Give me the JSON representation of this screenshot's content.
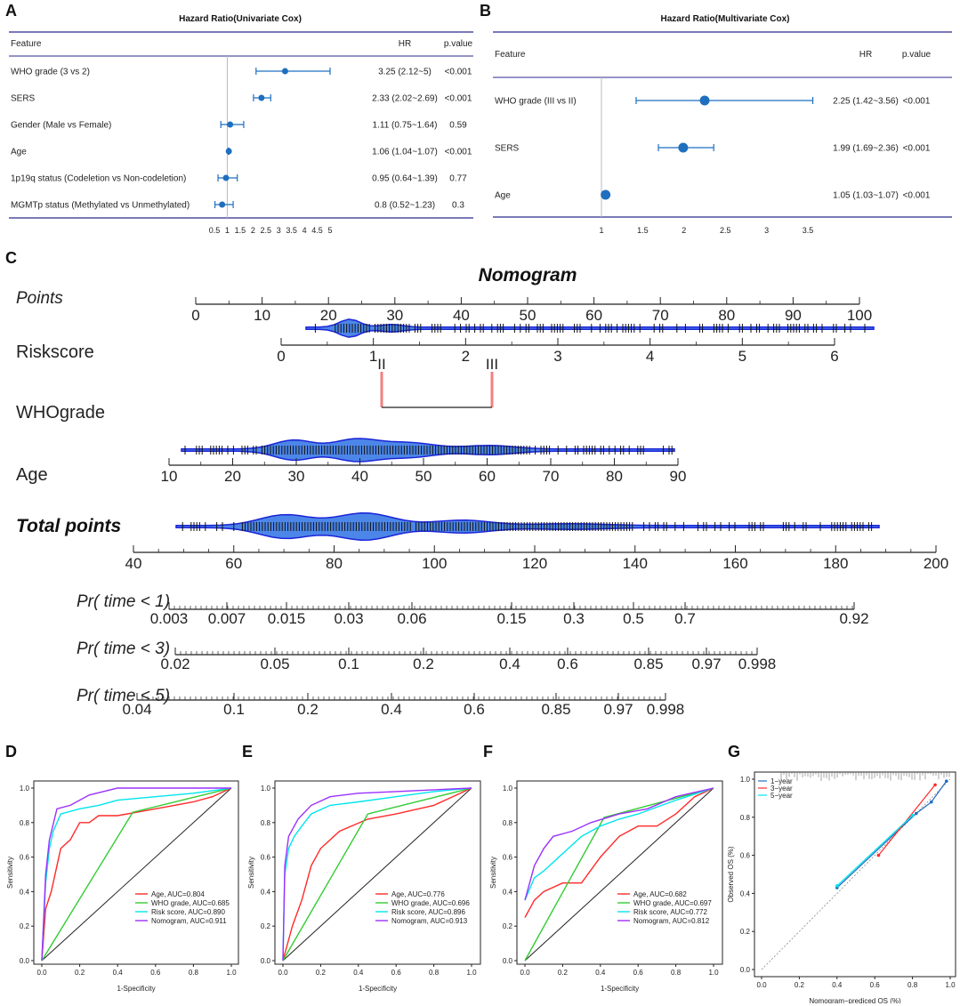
{
  "panel_labels": [
    "A",
    "B",
    "C",
    "D",
    "E",
    "F",
    "G"
  ],
  "colors": {
    "marker": "#1f6fbf",
    "line": "#1f6fbf",
    "rule": "#2b2b8c",
    "violin": "#4c86e8",
    "violin_edge": "#1b24d8",
    "bracket": "#f08080",
    "age": "#ff2a2a",
    "who": "#33cc33",
    "risk": "#00e5ee",
    "nomo": "#9b30ff"
  },
  "chart_data": [
    {
      "id": "A",
      "type": "forest",
      "title": "Hazard Ratio(Univariate Cox)",
      "headers": {
        "feature": "Feature",
        "hr": "HR",
        "p": "p.value"
      },
      "rows": [
        {
          "feature": "WHO grade  (3 vs 2)",
          "hr": 3.25,
          "lo": 2.12,
          "hi": 5,
          "hr_text": "3.25 (2.12~5)",
          "p": "<0.001"
        },
        {
          "feature": "SERS",
          "hr": 2.33,
          "lo": 2.02,
          "hi": 2.69,
          "hr_text": "2.33 (2.02~2.69)",
          "p": "<0.001"
        },
        {
          "feature": "Gender (Male vs Female)",
          "hr": 1.11,
          "lo": 0.75,
          "hi": 1.64,
          "hr_text": "1.11 (0.75~1.64)",
          "p": "0.59"
        },
        {
          "feature": "Age",
          "hr": 1.06,
          "lo": 1.04,
          "hi": 1.07,
          "hr_text": "1.06 (1.04~1.07)",
          "p": "<0.001"
        },
        {
          "feature": "1p19q status (Codeletion vs Non-codeletion)",
          "hr": 0.95,
          "lo": 0.64,
          "hi": 1.39,
          "hr_text": "0.95 (0.64~1.39)",
          "p": "0.77"
        },
        {
          "feature": "MGMTp status (Methylated vs Unmethylated)",
          "hr": 0.8,
          "lo": 0.52,
          "hi": 1.23,
          "hr_text": "0.8 (0.52~1.23)",
          "p": "0.3"
        }
      ],
      "ref": 1,
      "xlim": [
        0.5,
        5
      ],
      "ticks": [
        "0.5",
        "1",
        "1.5",
        "2",
        "2.5",
        "3",
        "3.5",
        "4",
        "4.5",
        "5"
      ]
    },
    {
      "id": "B",
      "type": "forest",
      "title": "Hazard Ratio(Multivariate Cox)",
      "headers": {
        "feature": "Feature",
        "hr": "HR",
        "p": "p.value"
      },
      "rows": [
        {
          "feature": "WHO grade (III vs II)",
          "hr": 2.25,
          "lo": 1.42,
          "hi": 3.56,
          "hr_text": "2.25 (1.42~3.56)",
          "p": "<0.001"
        },
        {
          "feature": "SERS",
          "hr": 1.99,
          "lo": 1.69,
          "hi": 2.36,
          "hr_text": "1.99 (1.69~2.36)",
          "p": "<0.001"
        },
        {
          "feature": "Age",
          "hr": 1.05,
          "lo": 1.03,
          "hi": 1.07,
          "hr_text": "1.05 (1.03~1.07)",
          "p": "<0.001"
        }
      ],
      "ref": 1,
      "xlim": [
        1,
        3.5
      ],
      "ticks": [
        "1",
        "1.5",
        "2",
        "2.5",
        "3",
        "3.5"
      ]
    },
    {
      "id": "C",
      "type": "nomogram",
      "title": "Nomogram",
      "rows": [
        {
          "label": "Points",
          "ticks": [
            "0",
            "10",
            "20",
            "30",
            "40",
            "50",
            "60",
            "70",
            "80",
            "90",
            "100"
          ]
        },
        {
          "label": "Riskscore",
          "ticks": [
            "0",
            "1",
            "2",
            "3",
            "4",
            "5",
            "6"
          ]
        },
        {
          "label": "WHOgrade",
          "ticks": [
            "II",
            "III"
          ]
        },
        {
          "label": "Age",
          "ticks": [
            "10",
            "20",
            "30",
            "40",
            "50",
            "60",
            "70",
            "80",
            "90"
          ]
        },
        {
          "label": "Total points",
          "ticks": [
            "40",
            "60",
            "80",
            "100",
            "120",
            "140",
            "160",
            "180",
            "200"
          ]
        },
        {
          "label": "Pr( time < 1)",
          "ticks": [
            "0.003",
            "0.007",
            "0.015",
            "0.03",
            "0.06",
            "0.15",
            "0.3",
            "0.5",
            "0.7",
            "0.92"
          ]
        },
        {
          "label": "Pr( time < 3)",
          "ticks": [
            "0.02",
            "0.05",
            "0.1",
            "0.2",
            "0.4",
            "0.6",
            "0.85",
            "0.97",
            "0.998"
          ]
        },
        {
          "label": "Pr( time < 5)",
          "ticks": [
            "0.04",
            "0.1",
            "0.2",
            "0.4",
            "0.6",
            "0.85",
            "0.97",
            "0.998"
          ]
        }
      ]
    },
    {
      "id": "D",
      "type": "line",
      "xlabel": "1-Specificity",
      "ylabel": "Sensitivity",
      "ticks": [
        "0.0",
        "0.2",
        "0.4",
        "0.6",
        "0.8",
        "1.0"
      ],
      "series": [
        {
          "name": "Age",
          "auc": "0.804",
          "legend": "Age, AUC=0.804",
          "color": "#ff2a2a",
          "pts": [
            [
              0,
              0
            ],
            [
              0.02,
              0.3
            ],
            [
              0.05,
              0.4
            ],
            [
              0.08,
              0.55
            ],
            [
              0.1,
              0.65
            ],
            [
              0.15,
              0.7
            ],
            [
              0.2,
              0.8
            ],
            [
              0.25,
              0.8
            ],
            [
              0.3,
              0.84
            ],
            [
              0.4,
              0.84
            ],
            [
              0.5,
              0.86
            ],
            [
              0.7,
              0.9
            ],
            [
              0.8,
              0.92
            ],
            [
              0.9,
              0.95
            ],
            [
              1,
              1
            ]
          ]
        },
        {
          "name": "WHO grade",
          "auc": "0.685",
          "legend": "WHO grade, AUC=0.685",
          "color": "#33cc33",
          "pts": [
            [
              0,
              0
            ],
            [
              0.48,
              0.86
            ],
            [
              1,
              1
            ]
          ]
        },
        {
          "name": "Risk score",
          "auc": "0.890",
          "legend": "Risk score, AUC=0.890",
          "color": "#00e5ee",
          "pts": [
            [
              0,
              0
            ],
            [
              0.02,
              0.45
            ],
            [
              0.04,
              0.65
            ],
            [
              0.06,
              0.75
            ],
            [
              0.1,
              0.85
            ],
            [
              0.2,
              0.88
            ],
            [
              0.3,
              0.9
            ],
            [
              0.4,
              0.93
            ],
            [
              0.6,
              0.95
            ],
            [
              0.8,
              0.97
            ],
            [
              1,
              1
            ]
          ]
        },
        {
          "name": "Nomogram",
          "auc": "0.911",
          "legend": "Nomogram, AUC=0.911",
          "color": "#9b30ff",
          "pts": [
            [
              0,
              0
            ],
            [
              0.02,
              0.5
            ],
            [
              0.04,
              0.7
            ],
            [
              0.08,
              0.88
            ],
            [
              0.15,
              0.9
            ],
            [
              0.25,
              0.96
            ],
            [
              0.4,
              1
            ],
            [
              1,
              1
            ]
          ]
        }
      ]
    },
    {
      "id": "E",
      "type": "line",
      "xlabel": "1-Specificity",
      "ylabel": "Sensitivity",
      "ticks": [
        "0.0",
        "0.2",
        "0.4",
        "0.6",
        "0.8",
        "1.0"
      ],
      "series": [
        {
          "name": "Age",
          "auc": "0.776",
          "legend": "Age, AUC=0.776",
          "color": "#ff2a2a",
          "pts": [
            [
              0,
              0
            ],
            [
              0.05,
              0.2
            ],
            [
              0.1,
              0.35
            ],
            [
              0.15,
              0.55
            ],
            [
              0.2,
              0.65
            ],
            [
              0.3,
              0.75
            ],
            [
              0.45,
              0.82
            ],
            [
              0.6,
              0.85
            ],
            [
              0.8,
              0.9
            ],
            [
              0.9,
              0.95
            ],
            [
              1,
              1
            ]
          ]
        },
        {
          "name": "WHO grade",
          "auc": "0.696",
          "legend": "WHO grade, AUC=0.696",
          "color": "#33cc33",
          "pts": [
            [
              0,
              0
            ],
            [
              0.45,
              0.85
            ],
            [
              1,
              1
            ]
          ]
        },
        {
          "name": "Risk score",
          "auc": "0.896",
          "legend": "Risk score, AUC=0.896",
          "color": "#00e5ee",
          "pts": [
            [
              0,
              0
            ],
            [
              0.01,
              0.5
            ],
            [
              0.03,
              0.65
            ],
            [
              0.06,
              0.72
            ],
            [
              0.1,
              0.78
            ],
            [
              0.15,
              0.85
            ],
            [
              0.25,
              0.9
            ],
            [
              0.4,
              0.92
            ],
            [
              0.6,
              0.95
            ],
            [
              0.8,
              0.98
            ],
            [
              1,
              1
            ]
          ]
        },
        {
          "name": "Nomogram",
          "auc": "0.913",
          "legend": "Nomogram, AUC=0.913",
          "color": "#9b30ff",
          "pts": [
            [
              0,
              0
            ],
            [
              0.01,
              0.55
            ],
            [
              0.03,
              0.72
            ],
            [
              0.08,
              0.82
            ],
            [
              0.15,
              0.9
            ],
            [
              0.25,
              0.95
            ],
            [
              0.4,
              0.97
            ],
            [
              0.6,
              0.98
            ],
            [
              1,
              1
            ]
          ]
        }
      ]
    },
    {
      "id": "F",
      "type": "line",
      "xlabel": "1-Specificity",
      "ylabel": "Sensitivity",
      "ticks": [
        "0.0",
        "0.2",
        "0.4",
        "0.6",
        "0.8",
        "1.0"
      ],
      "series": [
        {
          "name": "Age",
          "auc": "0.682",
          "legend": "Age, AUC=0.682",
          "color": "#ff2a2a",
          "pts": [
            [
              0,
              0.25
            ],
            [
              0.05,
              0.35
            ],
            [
              0.1,
              0.4
            ],
            [
              0.2,
              0.45
            ],
            [
              0.3,
              0.45
            ],
            [
              0.4,
              0.6
            ],
            [
              0.5,
              0.72
            ],
            [
              0.6,
              0.78
            ],
            [
              0.7,
              0.78
            ],
            [
              0.8,
              0.85
            ],
            [
              0.9,
              0.95
            ],
            [
              1,
              1
            ]
          ]
        },
        {
          "name": "WHO grade",
          "auc": "0.697",
          "legend": "WHO grade, AUC=0.697",
          "color": "#33cc33",
          "pts": [
            [
              0,
              0
            ],
            [
              0.42,
              0.83
            ],
            [
              1,
              1
            ]
          ]
        },
        {
          "name": "Risk score",
          "auc": "0.772",
          "legend": "Risk score, AUC=0.772",
          "color": "#00e5ee",
          "pts": [
            [
              0,
              0.35
            ],
            [
              0.05,
              0.48
            ],
            [
              0.1,
              0.52
            ],
            [
              0.2,
              0.62
            ],
            [
              0.3,
              0.72
            ],
            [
              0.4,
              0.78
            ],
            [
              0.5,
              0.82
            ],
            [
              0.6,
              0.85
            ],
            [
              0.8,
              0.93
            ],
            [
              1,
              1
            ]
          ]
        },
        {
          "name": "Nomogram",
          "auc": "0.812",
          "legend": "Nomogram, AUC=0.812",
          "color": "#9b30ff",
          "pts": [
            [
              0,
              0.35
            ],
            [
              0.05,
              0.55
            ],
            [
              0.1,
              0.65
            ],
            [
              0.15,
              0.72
            ],
            [
              0.25,
              0.75
            ],
            [
              0.35,
              0.8
            ],
            [
              0.5,
              0.85
            ],
            [
              0.65,
              0.88
            ],
            [
              0.8,
              0.95
            ],
            [
              1,
              1
            ]
          ]
        }
      ]
    },
    {
      "id": "G",
      "type": "scatter",
      "xlabel": "Nomogram−prediced OS (%)",
      "ylabel": "Observed OS (%)",
      "ticks": [
        "0.0",
        "0.2",
        "0.4",
        "0.6",
        "0.8",
        "1.0"
      ],
      "series": [
        {
          "name": "1−year",
          "color": "#1f6fbf",
          "pts": [
            [
              0.4,
              0.43
            ],
            [
              0.82,
              0.82
            ],
            [
              0.9,
              0.88
            ],
            [
              0.98,
              0.99
            ]
          ]
        },
        {
          "name": "3−year",
          "color": "#ff2a2a",
          "pts": [
            [
              0.62,
              0.6
            ],
            [
              0.92,
              0.97
            ]
          ]
        },
        {
          "name": "5−year",
          "color": "#00e5ee",
          "pts": [
            [
              0.4,
              0.44
            ],
            [
              0.8,
              0.81
            ]
          ]
        }
      ]
    }
  ]
}
